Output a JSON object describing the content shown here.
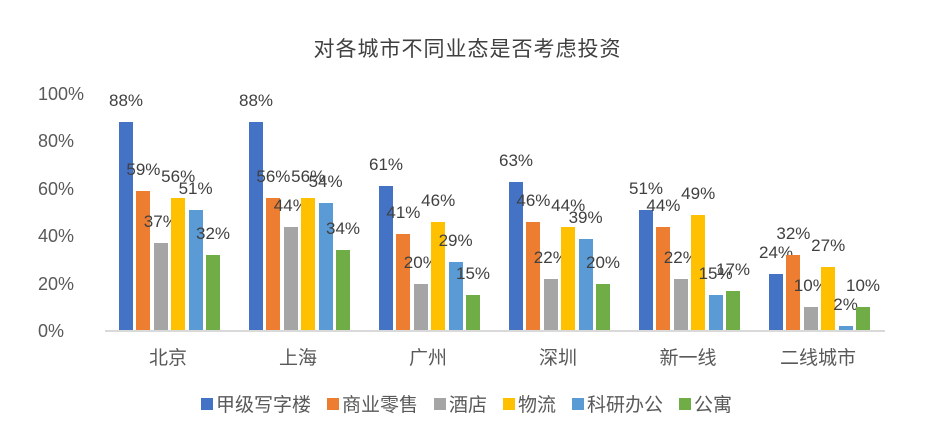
{
  "chart_data": {
    "type": "bar",
    "title": "对各城市不同业态是否考虑投资",
    "categories": [
      "北京",
      "上海",
      "广州",
      "深圳",
      "新一线",
      "二线城市"
    ],
    "series": [
      {
        "name": "甲级写字楼",
        "color": "#4472C4",
        "values": [
          88,
          88,
          61,
          63,
          51,
          24
        ]
      },
      {
        "name": "商业零售",
        "color": "#ED7D31",
        "values": [
          59,
          56,
          41,
          46,
          44,
          32
        ]
      },
      {
        "name": "酒店",
        "color": "#A5A5A5",
        "values": [
          37,
          44,
          20,
          22,
          22,
          10
        ]
      },
      {
        "name": "物流",
        "color": "#FFC000",
        "values": [
          56,
          56,
          46,
          44,
          49,
          27
        ]
      },
      {
        "name": "科研办公",
        "color": "#5B9BD5",
        "values": [
          51,
          54,
          29,
          39,
          15,
          2
        ]
      },
      {
        "name": "公寓",
        "color": "#70AD47",
        "values": [
          32,
          34,
          15,
          20,
          17,
          10
        ]
      }
    ],
    "y_ticks": [
      "0%",
      "20%",
      "40%",
      "60%",
      "80%",
      "100%"
    ],
    "ylim": [
      0,
      100
    ],
    "data_label_suffix": "%",
    "grid": false,
    "legend_position": "bottom"
  }
}
